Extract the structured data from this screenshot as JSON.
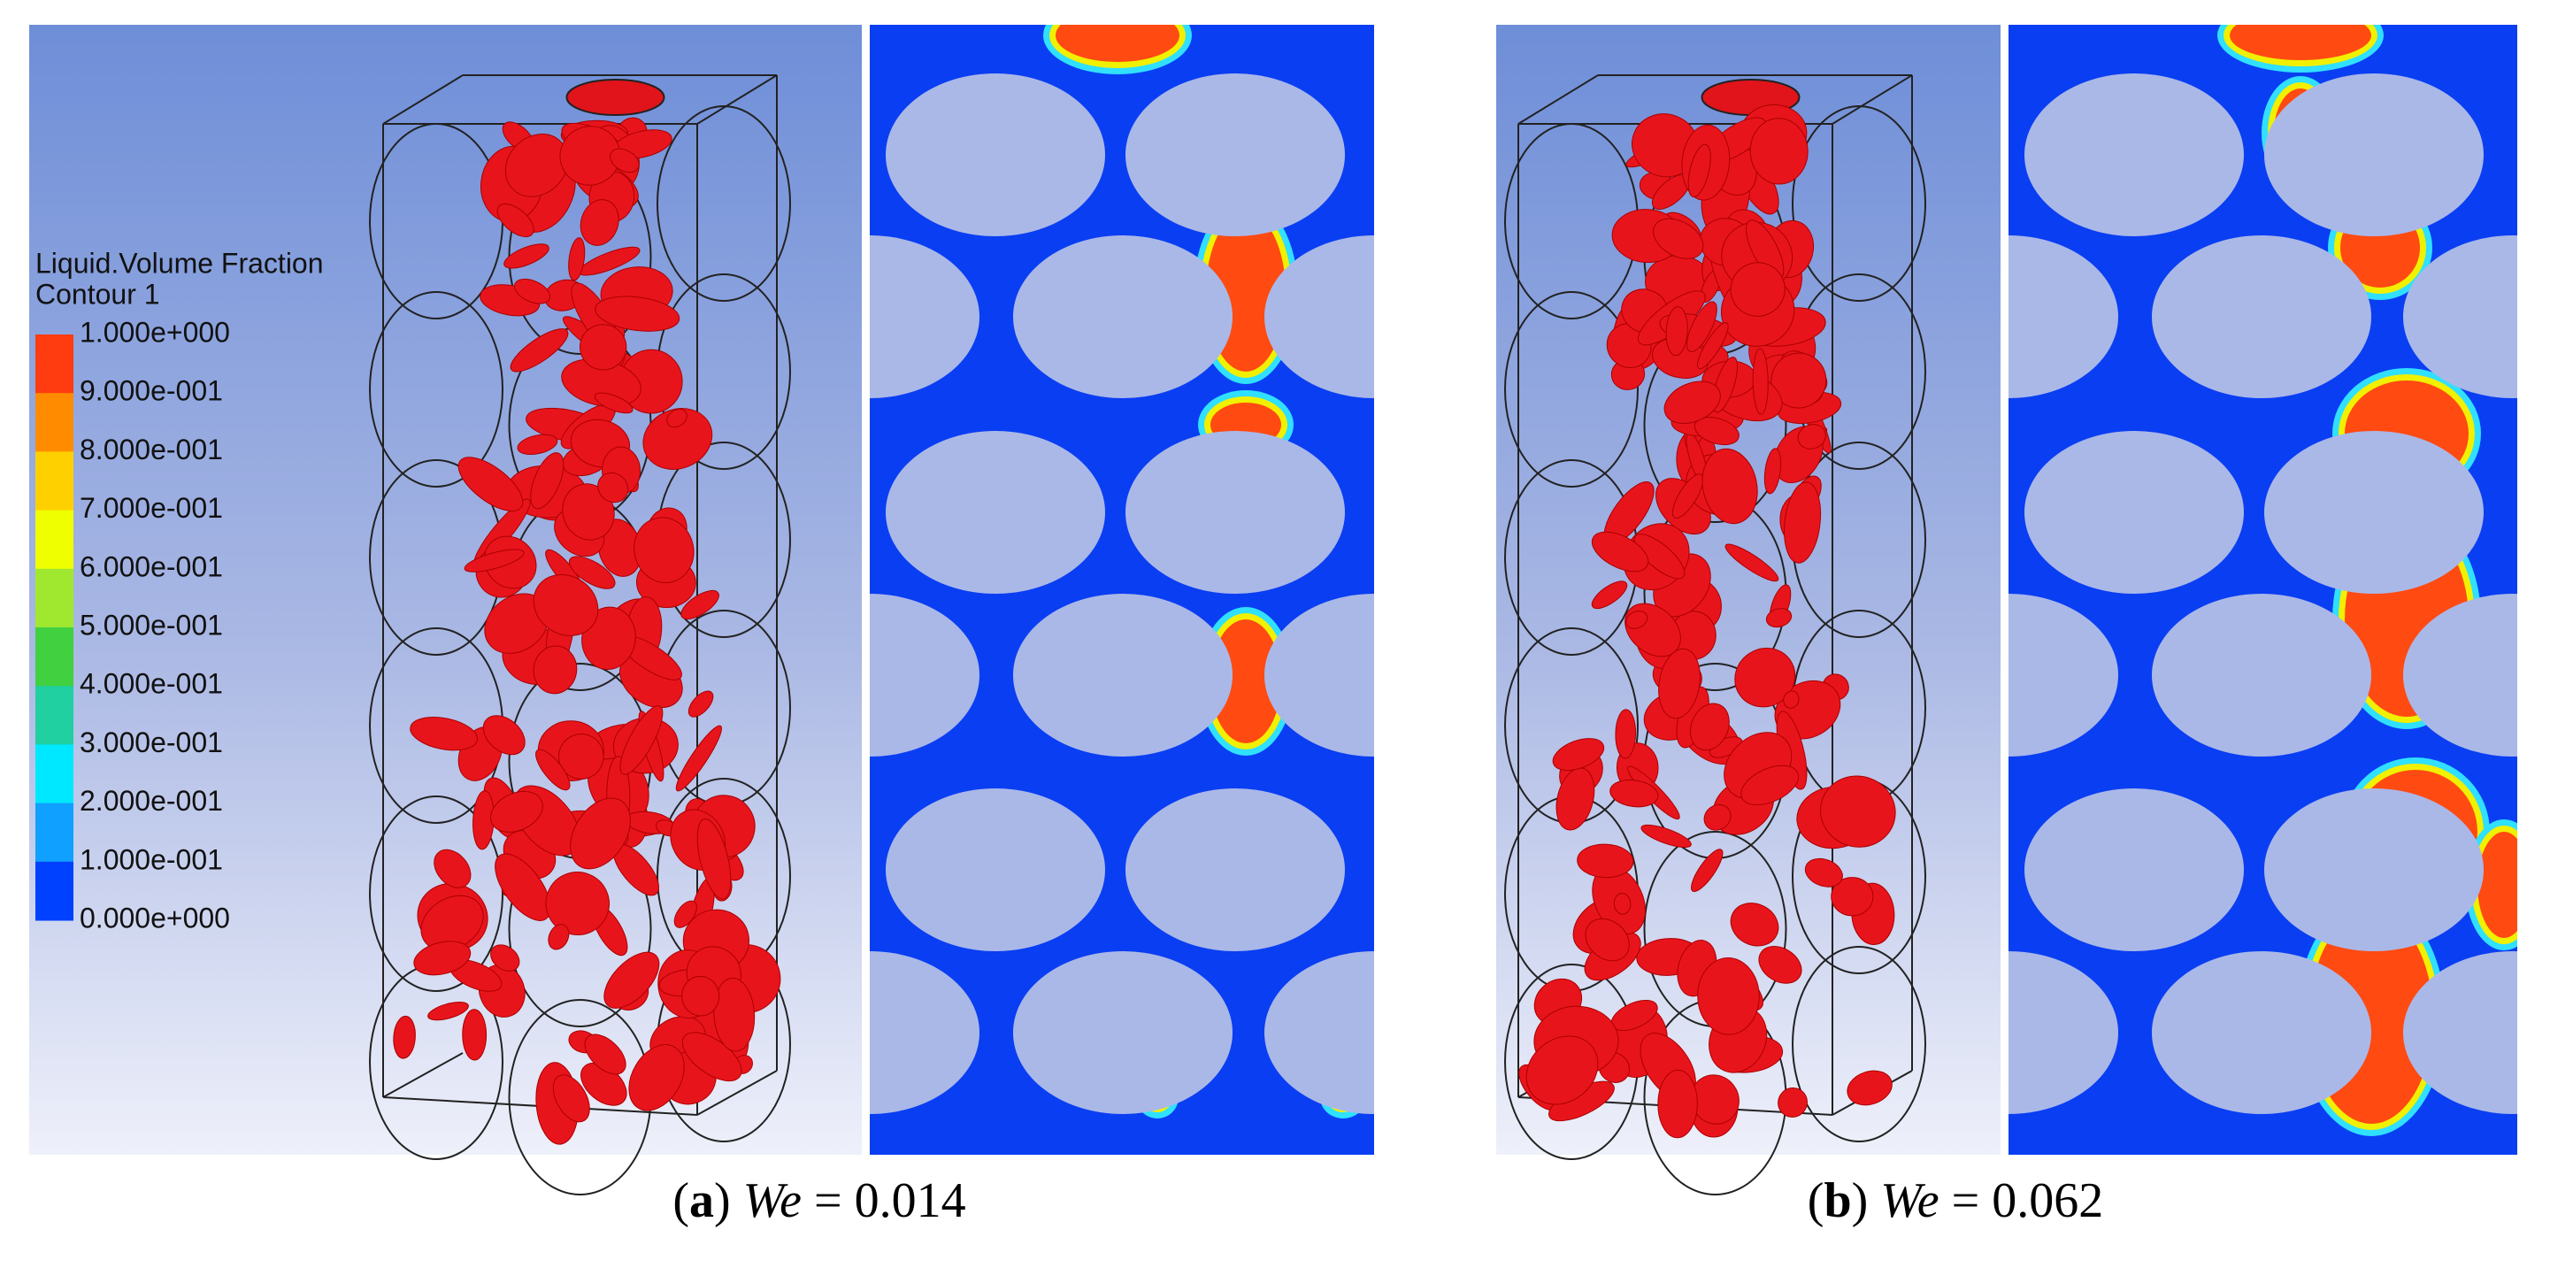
{
  "legend": {
    "title": "Liquid.Volume Fraction",
    "subtitle": "Contour 1",
    "labels": [
      "1.000e+000",
      "9.000e-001",
      "8.000e-001",
      "7.000e-001",
      "6.000e-001",
      "5.000e-001",
      "4.000e-001",
      "3.000e-001",
      "2.000e-001",
      "1.000e-001",
      "0.000e+000"
    ],
    "colors": [
      "#ff3b10",
      "#ff8c00",
      "#ffd000",
      "#f0ff00",
      "#a0e830",
      "#40d040",
      "#20d0a0",
      "#00e8ff",
      "#10a0ff",
      "#0040ff"
    ]
  },
  "panels": [
    {
      "caption": [
        {
          "text": "(",
          "style": "normal"
        },
        {
          "text": "a",
          "style": "bold"
        },
        {
          "text": ") ",
          "style": "normal"
        },
        {
          "text": "We",
          "style": "italic"
        },
        {
          "text": " = 0.014",
          "style": "normal"
        }
      ]
    },
    {
      "caption": [
        {
          "text": "(",
          "style": "normal"
        },
        {
          "text": "b",
          "style": "bold"
        },
        {
          "text": ") ",
          "style": "normal"
        },
        {
          "text": "We",
          "style": "italic"
        },
        {
          "text": " = 0.062",
          "style": "normal"
        }
      ]
    }
  ]
}
